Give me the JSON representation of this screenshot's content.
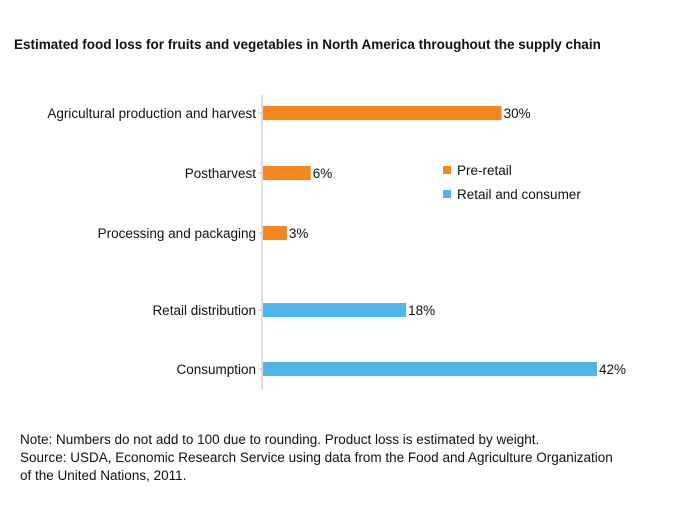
{
  "chart_data": {
    "type": "bar",
    "orientation": "horizontal",
    "title": "Estimated food loss for fruits and vegetables in North America throughout the supply chain",
    "xlabel": "",
    "ylabel": "",
    "categories": [
      "Agricultural production and harvest",
      "Postharvest",
      "Processing and packaging",
      "Retail distribution",
      "Consumption"
    ],
    "values": [
      30,
      6,
      3,
      18,
      42
    ],
    "value_labels": [
      "30%",
      "6%",
      "3%",
      "18%",
      "42%"
    ],
    "groups": [
      "Pre-retail",
      "Pre-retail",
      "Pre-retail",
      "Retail and consumer",
      "Retail and consumer"
    ],
    "xlim": [
      0,
      42
    ],
    "grid": false,
    "legend_position": "right",
    "legend": [
      {
        "name": "Pre-retail",
        "color": "#f7861e"
      },
      {
        "name": "Retail and consumer",
        "color": "#4db6ea"
      }
    ]
  },
  "notes": {
    "note": "Note: Numbers do not add to 100 due to rounding. Product loss is estimated by weight.",
    "source_line_1": "Source: USDA, Economic Research Service using data from the Food and Agriculture Organization",
    "source_line_2": "of the United Nations, 2011."
  }
}
